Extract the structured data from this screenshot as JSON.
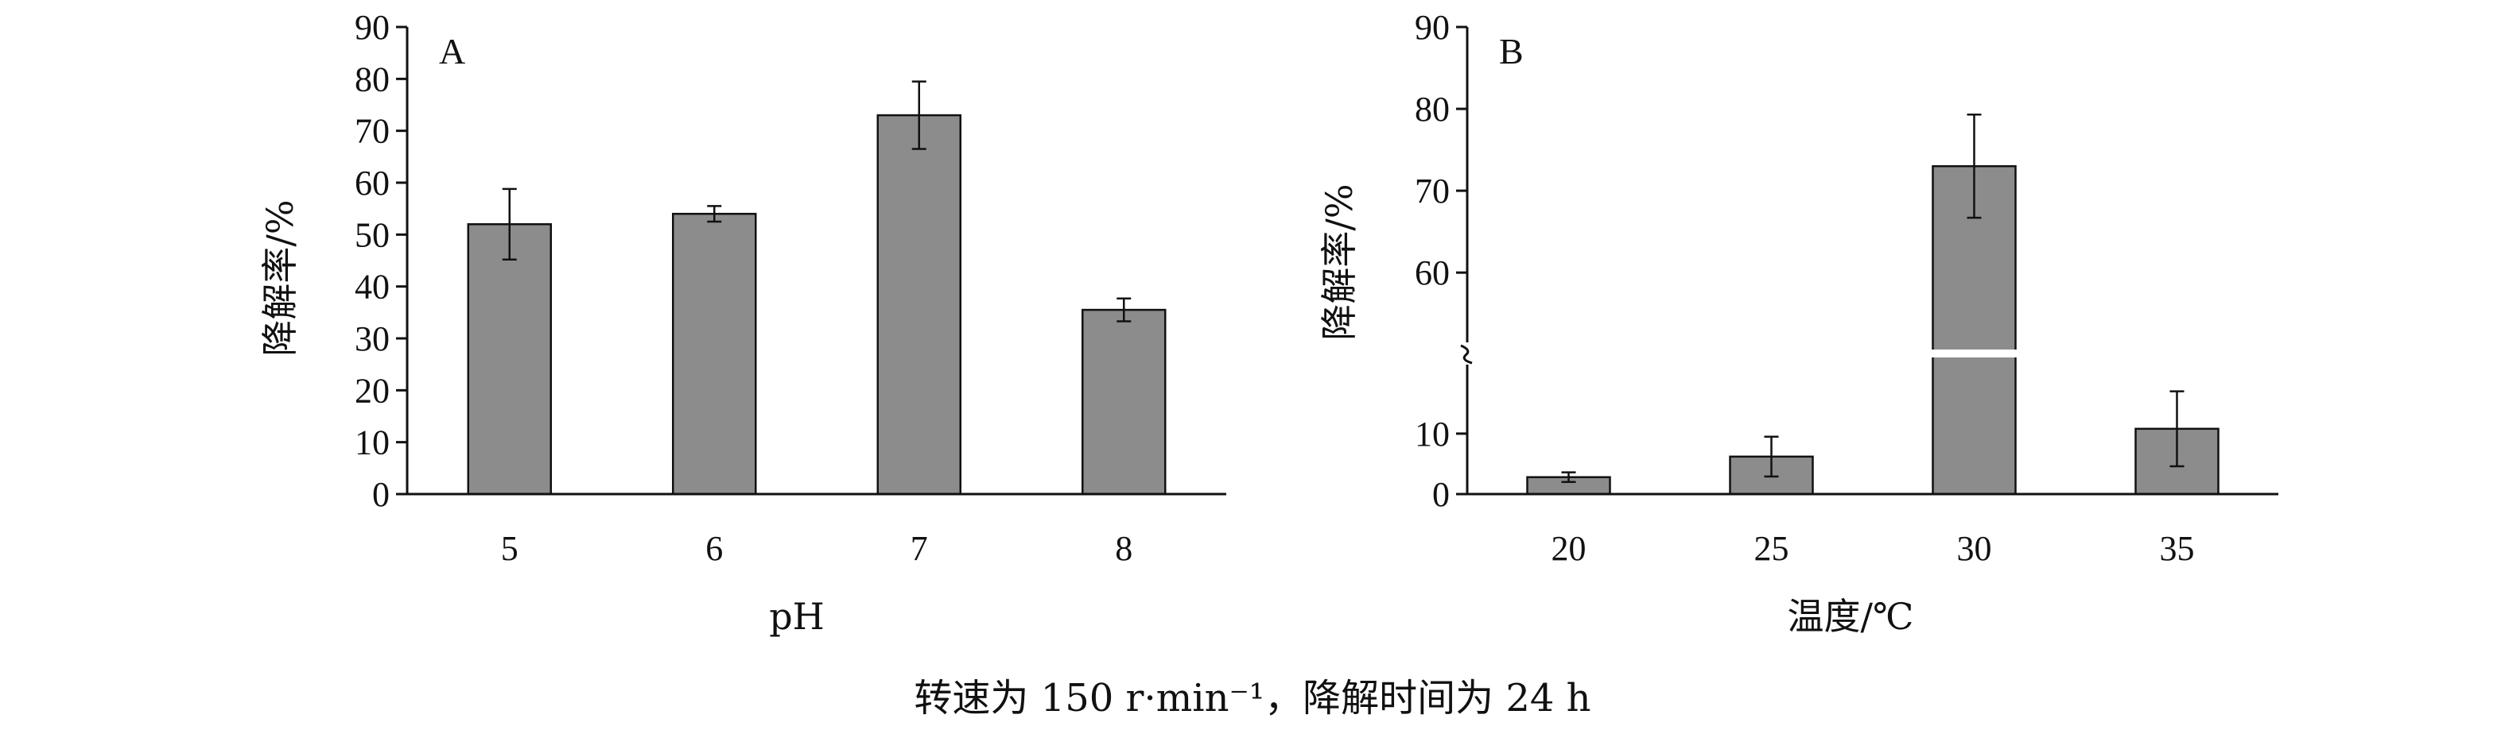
{
  "colors": {
    "bar_fill": "#8c8c8c",
    "axis": "#111111",
    "background": "#ffffff"
  },
  "caption": "转速为 150 r·min⁻¹，降解时间为 24 h",
  "chart_data": [
    {
      "type": "bar",
      "panel_label": "A",
      "xlabel": "pH",
      "ylabel": "降解率/%",
      "categories": [
        "5",
        "6",
        "7",
        "8"
      ],
      "values": [
        52,
        54,
        73,
        35.5
      ],
      "errors": [
        6.8,
        1.5,
        6.5,
        2.2
      ],
      "ylim": [
        0,
        90
      ],
      "yticks": [
        0,
        10,
        20,
        30,
        40,
        50,
        60,
        70,
        80,
        90
      ],
      "axis_break": false,
      "grid": false
    },
    {
      "type": "bar",
      "panel_label": "B",
      "xlabel": "温度/℃",
      "ylabel": "降解率/%",
      "categories": [
        "20",
        "25",
        "30",
        "35"
      ],
      "values": [
        2.8,
        6.2,
        73,
        10.8
      ],
      "errors": [
        0.8,
        3.3,
        6.3,
        6.2
      ],
      "ylim": [
        0,
        90
      ],
      "yticks": [
        0,
        10,
        60,
        70,
        80,
        90
      ],
      "axis_break": true,
      "break_range": [
        18,
        54
      ],
      "grid": false
    }
  ]
}
